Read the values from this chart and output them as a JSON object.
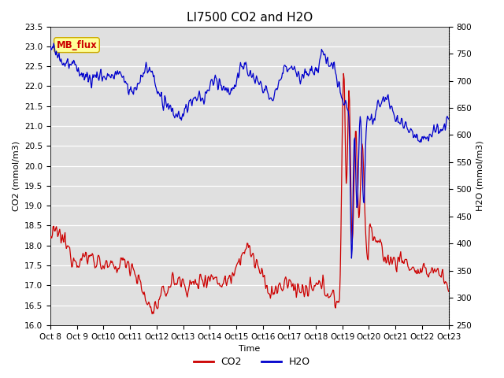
{
  "title": "LI7500 CO2 and H2O",
  "xlabel": "Time",
  "ylabel_left": "CO2 (mmol/m3)",
  "ylabel_right": "H2O (mmol/m3)",
  "co2_ylim": [
    16.0,
    23.5
  ],
  "h2o_ylim": [
    250,
    800
  ],
  "xtick_labels": [
    "Oct 8",
    "Oct 9",
    "Oct 10",
    "Oct 11",
    "Oct 12",
    "Oct 13",
    "Oct 14",
    "Oct 15",
    "Oct 16",
    "Oct 17",
    "Oct 18",
    "Oct 19",
    "Oct 20",
    "Oct 21",
    "Oct 22",
    "Oct 23"
  ],
  "co2_color": "#cc0000",
  "h2o_color": "#0000cc",
  "bg_color": "#e0e0e0",
  "annotation_text": "MB_flux",
  "annotation_bg": "#ffff99",
  "annotation_border": "#ccaa00",
  "annotation_text_color": "#cc0000",
  "legend_co2": "CO2",
  "legend_h2o": "H2O",
  "title_fontsize": 11,
  "axis_fontsize": 8,
  "tick_fontsize": 7.5
}
